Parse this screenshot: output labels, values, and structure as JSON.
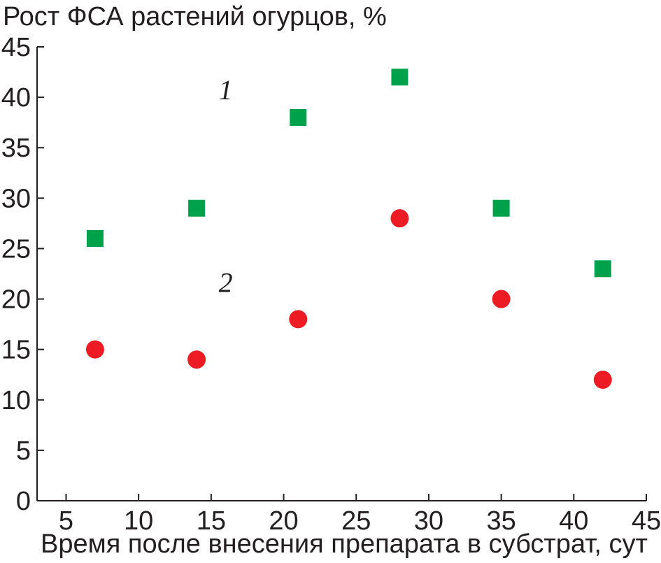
{
  "chart_data": {
    "type": "scatter",
    "ylabel": "Рост ФСА растений огурцов, %",
    "xlabel": "Время после внесения препарата в субстрат, сут",
    "xlim": [
      3,
      45
    ],
    "ylim": [
      0,
      45
    ],
    "x_ticks": [
      5,
      10,
      15,
      20,
      25,
      30,
      35,
      40,
      45
    ],
    "y_ticks": [
      0,
      5,
      10,
      15,
      20,
      25,
      30,
      35,
      40,
      45
    ],
    "grid": false,
    "series": [
      {
        "label": "1",
        "marker": "square",
        "color": "#00a14b",
        "x": [
          7,
          14,
          21,
          28,
          35,
          42
        ],
        "y": [
          26,
          29,
          38,
          42,
          29,
          23
        ],
        "label_at": [
          16,
          39.8
        ]
      },
      {
        "label": "2",
        "marker": "circle",
        "color": "#ed1c24",
        "x": [
          7,
          14,
          21,
          28,
          35,
          42
        ],
        "y": [
          15,
          14,
          18,
          28,
          20,
          12
        ],
        "label_at": [
          16,
          20.7
        ]
      }
    ]
  }
}
